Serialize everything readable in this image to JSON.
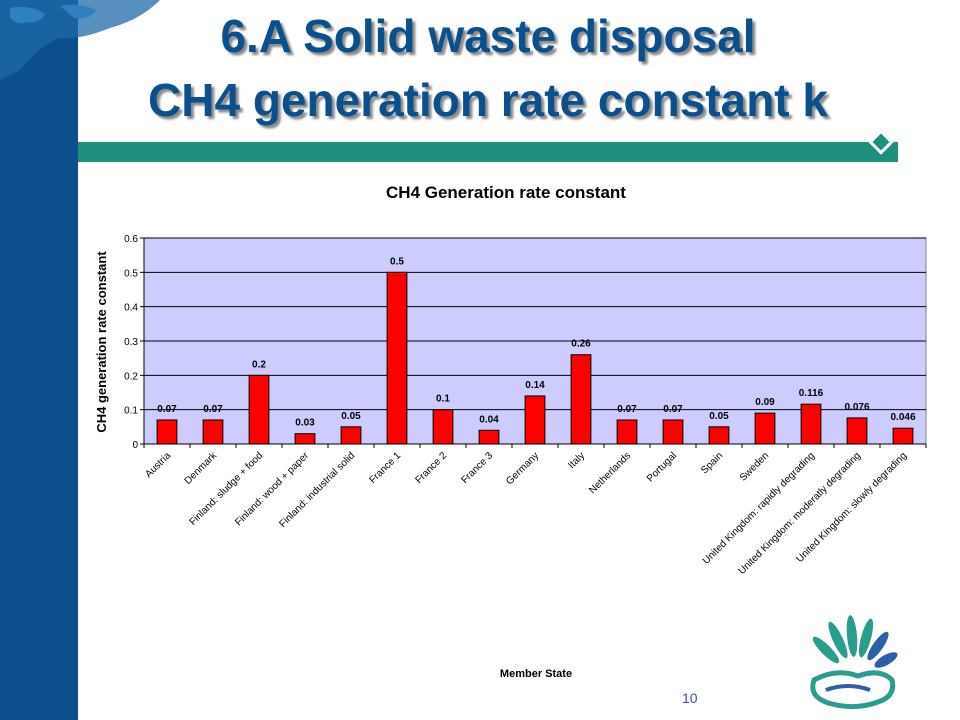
{
  "slide": {
    "title_line1": "6.A Solid waste disposal",
    "title_line2": "CH4 generation rate constant k",
    "page_number": "10"
  },
  "colors": {
    "left_band": "#0b4f8c",
    "header_rule": "#1e8f7e",
    "plot_background": "#ccccff",
    "bar_fill": "#ff0000",
    "title_text": "#0b4f8c"
  },
  "logo": {
    "icon": "leaf-fan-logo-icon"
  },
  "chart_data": {
    "type": "bar",
    "title": "CH4 Generation rate constant",
    "xlabel": "Member State",
    "ylabel": "CH4 generation rate constant",
    "ylim": [
      0,
      0.6
    ],
    "yticks": [
      "0",
      "0.1",
      "0.2",
      "0.3",
      "0.4",
      "0.5",
      "0.6"
    ],
    "grid": true,
    "legend": "none",
    "categories": [
      "Austria",
      "Denmark",
      "Finland: sludge + food",
      "Finland: wood + paper",
      "Finland: industrial solid",
      "France 1",
      "France 2",
      "France 3",
      "Germany",
      "Italy",
      "Netherlands",
      "Portugal",
      "Spain",
      "Sweden",
      "United Kingdom: rapidly degrading",
      "United Kingdom: moderatly degrading",
      "United Kingdom: slowly degrading"
    ],
    "values": [
      0.07,
      0.07,
      0.2,
      0.03,
      0.05,
      0.5,
      0.1,
      0.04,
      0.14,
      0.26,
      0.07,
      0.07,
      0.05,
      0.09,
      0.116,
      0.076,
      0.046
    ],
    "data_labels": [
      "0.07",
      "0.07",
      "0.2",
      "0.03",
      "0.05",
      "0.5",
      "0.1",
      "0.04",
      "0.14",
      "0.26",
      "0.07",
      "0.07",
      "0.05",
      "0.09",
      "0.116",
      "0.076",
      "0.046"
    ]
  }
}
